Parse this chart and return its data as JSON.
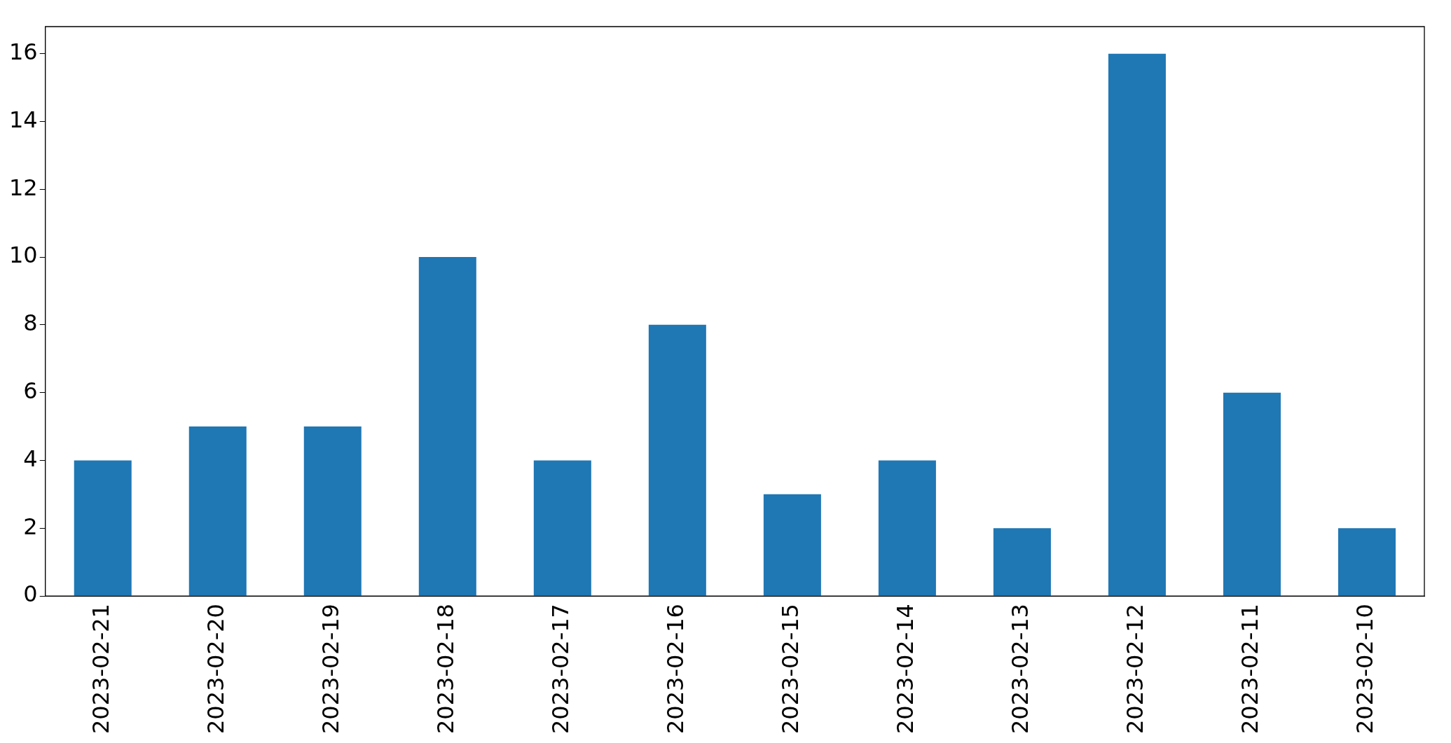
{
  "chart_data": {
    "type": "bar",
    "categories": [
      "2023-02-21",
      "2023-02-20",
      "2023-02-19",
      "2023-02-18",
      "2023-02-17",
      "2023-02-16",
      "2023-02-15",
      "2023-02-14",
      "2023-02-13",
      "2023-02-12",
      "2023-02-11",
      "2023-02-10"
    ],
    "values": [
      4,
      5,
      5,
      10,
      4,
      8,
      3,
      4,
      2,
      16,
      6,
      2
    ],
    "color": "#1f77b4",
    "ylim": [
      0,
      16.8
    ],
    "yticks": [
      0,
      2,
      4,
      6,
      8,
      10,
      12,
      14,
      16
    ],
    "grid": false,
    "legend": false
  }
}
